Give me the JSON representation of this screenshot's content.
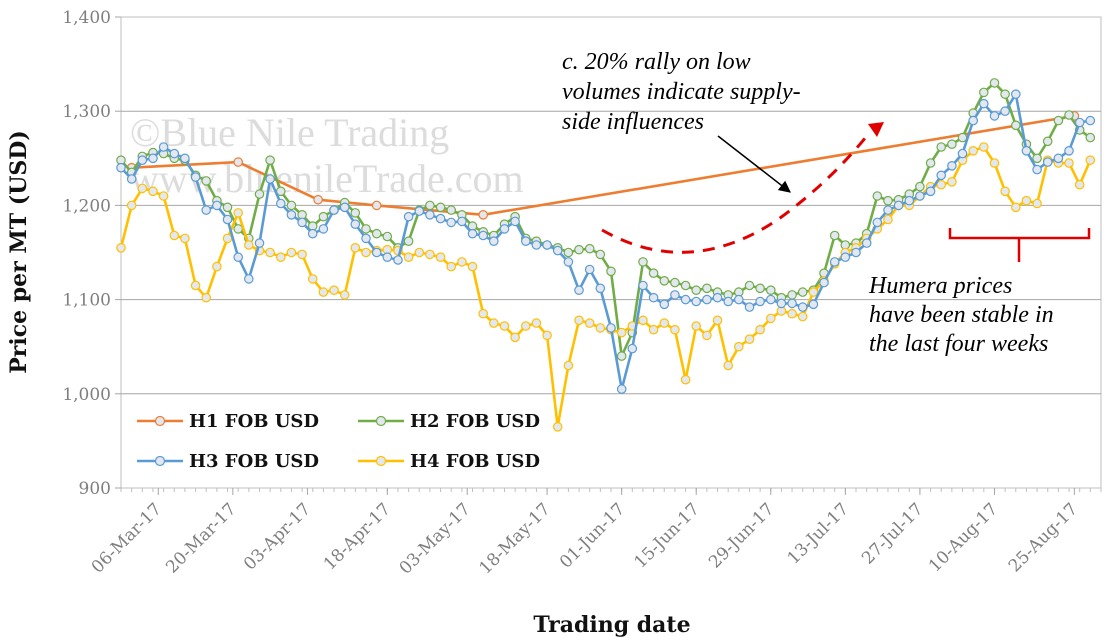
{
  "chart_data": {
    "type": "line",
    "xlabel": "Trading date",
    "ylabel": "Price per MT (USD)",
    "ylim": [
      900,
      1400
    ],
    "yticks": [
      "900",
      "1,000",
      "1,100",
      "1,200",
      "1,300",
      "1,400"
    ],
    "ytick_values": [
      900,
      1000,
      1100,
      1200,
      1300,
      1400
    ],
    "xlim": [
      "2017-02-27",
      "2017-08-30"
    ],
    "xticks": [
      "06-Mar-17",
      "20-Mar-17",
      "03-Apr-17",
      "18-Apr-17",
      "03-May-17",
      "18-May-17",
      "01-Jun-17",
      "15-Jun-17",
      "29-Jun-17",
      "13-Jul-17",
      "27-Jul-17",
      "10-Aug-17",
      "25-Aug-17"
    ],
    "xtick_dates": [
      "2017-03-06",
      "2017-03-20",
      "2017-04-03",
      "2017-04-18",
      "2017-05-03",
      "2017-05-18",
      "2017-06-01",
      "2017-06-15",
      "2017-06-29",
      "2017-07-13",
      "2017-07-27",
      "2017-08-10",
      "2017-08-25"
    ],
    "grid": "horizontal",
    "legend_position": "bottom-left",
    "watermark": [
      "©Blue Nile Trading",
      "www.bluenileTrade.com"
    ],
    "annotations": {
      "rally": [
        "c. 20% rally on low",
        "volumes indicate supply-",
        "side influences"
      ],
      "humera": [
        "Humera prices",
        "have been stable in",
        "the last four weeks"
      ]
    },
    "series": [
      {
        "name": "H1 FOB USD",
        "color": "#ED7D31",
        "x": [
          "2017-03-01",
          "2017-03-21",
          "2017-04-05",
          "2017-04-16",
          "2017-05-06",
          "2017-08-25"
        ],
        "y": [
          1240,
          1246,
          1206,
          1200,
          1190,
          1295
        ]
      },
      {
        "name": "H2 FOB USD",
        "color": "#70AD47",
        "x": [
          "2017-02-27",
          "2017-03-01",
          "2017-03-03",
          "2017-03-05",
          "2017-03-07",
          "2017-03-09",
          "2017-03-11",
          "2017-03-13",
          "2017-03-15",
          "2017-03-17",
          "2017-03-19",
          "2017-03-21",
          "2017-03-23",
          "2017-03-25",
          "2017-03-27",
          "2017-03-29",
          "2017-03-31",
          "2017-04-02",
          "2017-04-04",
          "2017-04-06",
          "2017-04-08",
          "2017-04-10",
          "2017-04-12",
          "2017-04-14",
          "2017-04-16",
          "2017-04-18",
          "2017-04-20",
          "2017-04-22",
          "2017-04-24",
          "2017-04-26",
          "2017-04-28",
          "2017-04-30",
          "2017-05-02",
          "2017-05-04",
          "2017-05-06",
          "2017-05-08",
          "2017-05-10",
          "2017-05-12",
          "2017-05-14",
          "2017-05-16",
          "2017-05-18",
          "2017-05-20",
          "2017-05-22",
          "2017-05-24",
          "2017-05-26",
          "2017-05-28",
          "2017-05-30",
          "2017-06-01",
          "2017-06-03",
          "2017-06-05",
          "2017-06-07",
          "2017-06-09",
          "2017-06-11",
          "2017-06-13",
          "2017-06-15",
          "2017-06-17",
          "2017-06-19",
          "2017-06-21",
          "2017-06-23",
          "2017-06-25",
          "2017-06-27",
          "2017-06-29",
          "2017-07-01",
          "2017-07-03",
          "2017-07-05",
          "2017-07-07",
          "2017-07-09",
          "2017-07-11",
          "2017-07-13",
          "2017-07-15",
          "2017-07-17",
          "2017-07-19",
          "2017-07-21",
          "2017-07-23",
          "2017-07-25",
          "2017-07-27",
          "2017-07-29",
          "2017-07-31",
          "2017-08-02",
          "2017-08-04",
          "2017-08-06",
          "2017-08-08",
          "2017-08-10",
          "2017-08-12",
          "2017-08-14",
          "2017-08-16",
          "2017-08-18",
          "2017-08-20",
          "2017-08-22",
          "2017-08-24",
          "2017-08-26",
          "2017-08-28"
        ],
        "y": [
          1248,
          1235,
          1252,
          1256,
          1255,
          1250,
          1248,
          1232,
          1226,
          1205,
          1198,
          1175,
          1165,
          1212,
          1248,
          1215,
          1200,
          1190,
          1178,
          1188,
          1195,
          1203,
          1192,
          1175,
          1170,
          1167,
          1155,
          1162,
          1195,
          1200,
          1198,
          1195,
          1190,
          1178,
          1172,
          1168,
          1180,
          1188,
          1165,
          1162,
          1158,
          1155,
          1150,
          1153,
          1154,
          1148,
          1130,
          1040,
          1065,
          1140,
          1128,
          1120,
          1118,
          1115,
          1110,
          1112,
          1108,
          1105,
          1108,
          1115,
          1112,
          1110,
          1102,
          1105,
          1108,
          1110,
          1128,
          1168,
          1158,
          1160,
          1170,
          1210,
          1205,
          1206,
          1212,
          1220,
          1245,
          1262,
          1265,
          1272,
          1298,
          1320,
          1330,
          1318,
          1285,
          1265,
          1250,
          1268,
          1290,
          1296,
          1280,
          1272
        ]
      },
      {
        "name": "H3 FOB USD",
        "color": "#5B9BD5",
        "x": [
          "2017-02-27",
          "2017-03-01",
          "2017-03-03",
          "2017-03-05",
          "2017-03-07",
          "2017-03-09",
          "2017-03-11",
          "2017-03-13",
          "2017-03-15",
          "2017-03-17",
          "2017-03-19",
          "2017-03-21",
          "2017-03-23",
          "2017-03-25",
          "2017-03-27",
          "2017-03-29",
          "2017-03-31",
          "2017-04-02",
          "2017-04-04",
          "2017-04-06",
          "2017-04-08",
          "2017-04-10",
          "2017-04-12",
          "2017-04-14",
          "2017-04-16",
          "2017-04-18",
          "2017-04-20",
          "2017-04-22",
          "2017-04-24",
          "2017-04-26",
          "2017-04-28",
          "2017-04-30",
          "2017-05-02",
          "2017-05-04",
          "2017-05-06",
          "2017-05-08",
          "2017-05-10",
          "2017-05-12",
          "2017-05-14",
          "2017-05-16",
          "2017-05-18",
          "2017-05-20",
          "2017-05-22",
          "2017-05-24",
          "2017-05-26",
          "2017-05-28",
          "2017-05-30",
          "2017-06-01",
          "2017-06-03",
          "2017-06-05",
          "2017-06-07",
          "2017-06-09",
          "2017-06-11",
          "2017-06-13",
          "2017-06-15",
          "2017-06-17",
          "2017-06-19",
          "2017-06-21",
          "2017-06-23",
          "2017-06-25",
          "2017-06-27",
          "2017-06-29",
          "2017-07-01",
          "2017-07-03",
          "2017-07-05",
          "2017-07-07",
          "2017-07-09",
          "2017-07-11",
          "2017-07-13",
          "2017-07-15",
          "2017-07-17",
          "2017-07-19",
          "2017-07-21",
          "2017-07-23",
          "2017-07-25",
          "2017-07-27",
          "2017-07-29",
          "2017-07-31",
          "2017-08-02",
          "2017-08-04",
          "2017-08-06",
          "2017-08-08",
          "2017-08-10",
          "2017-08-12",
          "2017-08-14",
          "2017-08-16",
          "2017-08-18",
          "2017-08-20",
          "2017-08-22",
          "2017-08-24",
          "2017-08-26",
          "2017-08-28"
        ],
        "y": [
          1240,
          1228,
          1248,
          1250,
          1262,
          1255,
          1250,
          1230,
          1195,
          1200,
          1185,
          1145,
          1122,
          1160,
          1228,
          1202,
          1190,
          1182,
          1170,
          1175,
          1195,
          1198,
          1180,
          1165,
          1150,
          1145,
          1142,
          1188,
          1194,
          1190,
          1186,
          1182,
          1183,
          1170,
          1168,
          1162,
          1175,
          1183,
          1162,
          1158,
          1158,
          1152,
          1140,
          1110,
          1132,
          1112,
          1070,
          1005,
          1048,
          1115,
          1102,
          1095,
          1105,
          1100,
          1098,
          1100,
          1102,
          1098,
          1100,
          1092,
          1098,
          1100,
          1096,
          1096,
          1092,
          1095,
          1118,
          1140,
          1145,
          1150,
          1160,
          1182,
          1195,
          1200,
          1205,
          1210,
          1215,
          1232,
          1242,
          1255,
          1290,
          1308,
          1295,
          1300,
          1318,
          1258,
          1238,
          1246,
          1250,
          1258,
          1288,
          1290
        ]
      },
      {
        "name": "H4 FOB USD",
        "color": "#FFC000",
        "x": [
          "2017-02-27",
          "2017-03-01",
          "2017-03-03",
          "2017-03-05",
          "2017-03-07",
          "2017-03-09",
          "2017-03-11",
          "2017-03-13",
          "2017-03-15",
          "2017-03-17",
          "2017-03-19",
          "2017-03-21",
          "2017-03-23",
          "2017-03-25",
          "2017-03-27",
          "2017-03-29",
          "2017-03-31",
          "2017-04-02",
          "2017-04-04",
          "2017-04-06",
          "2017-04-08",
          "2017-04-10",
          "2017-04-12",
          "2017-04-14",
          "2017-04-16",
          "2017-04-18",
          "2017-04-20",
          "2017-04-22",
          "2017-04-24",
          "2017-04-26",
          "2017-04-28",
          "2017-04-30",
          "2017-05-02",
          "2017-05-04",
          "2017-05-06",
          "2017-05-08",
          "2017-05-10",
          "2017-05-12",
          "2017-05-14",
          "2017-05-16",
          "2017-05-18",
          "2017-05-20",
          "2017-05-22",
          "2017-05-24",
          "2017-05-26",
          "2017-05-28",
          "2017-05-30",
          "2017-06-01",
          "2017-06-03",
          "2017-06-05",
          "2017-06-07",
          "2017-06-09",
          "2017-06-11",
          "2017-06-13",
          "2017-06-15",
          "2017-06-17",
          "2017-06-19",
          "2017-06-21",
          "2017-06-23",
          "2017-06-25",
          "2017-06-27",
          "2017-06-29",
          "2017-07-01",
          "2017-07-03",
          "2017-07-05",
          "2017-07-07",
          "2017-07-09",
          "2017-07-11",
          "2017-07-13",
          "2017-07-15",
          "2017-07-17",
          "2017-07-19",
          "2017-07-21",
          "2017-07-23",
          "2017-07-25",
          "2017-07-27",
          "2017-07-29",
          "2017-07-31",
          "2017-08-02",
          "2017-08-04",
          "2017-08-06",
          "2017-08-08",
          "2017-08-10",
          "2017-08-12",
          "2017-08-14",
          "2017-08-16",
          "2017-08-18",
          "2017-08-20",
          "2017-08-22",
          "2017-08-24",
          "2017-08-26",
          "2017-08-28"
        ],
        "y": [
          1155,
          1200,
          1218,
          1215,
          1210,
          1168,
          1165,
          1115,
          1102,
          1135,
          1165,
          1192,
          1158,
          1152,
          1150,
          1145,
          1150,
          1148,
          1122,
          1108,
          1110,
          1105,
          1155,
          1150,
          1152,
          1153,
          1152,
          1145,
          1150,
          1148,
          1145,
          1135,
          1140,
          1135,
          1085,
          1075,
          1072,
          1060,
          1072,
          1075,
          1062,
          965,
          1030,
          1078,
          1075,
          1070,
          1068,
          1065,
          1072,
          1078,
          1068,
          1075,
          1068,
          1015,
          1072,
          1062,
          1078,
          1030,
          1050,
          1058,
          1068,
          1080,
          1088,
          1085,
          1082,
          1108,
          1120,
          1138,
          1150,
          1155,
          1165,
          1175,
          1185,
          1200,
          1200,
          1210,
          1220,
          1222,
          1225,
          1248,
          1258,
          1262,
          1245,
          1215,
          1198,
          1205,
          1202,
          1248,
          1245,
          1245,
          1222,
          1248
        ]
      }
    ]
  }
}
